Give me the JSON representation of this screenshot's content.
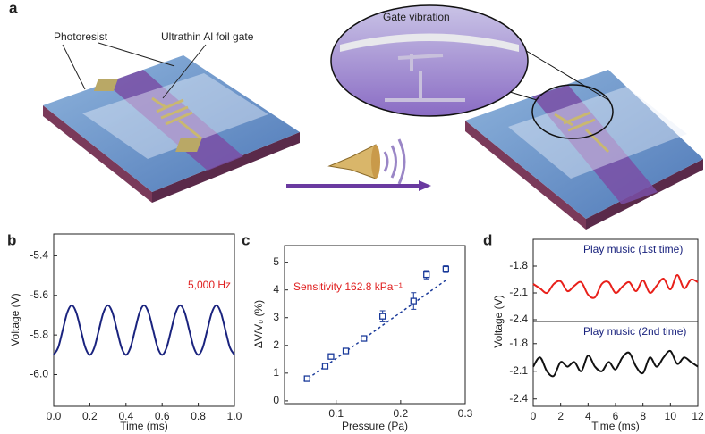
{
  "figure_a": {
    "panel": "a",
    "labels": [
      "Photoresist",
      "Ultrathin Al foil gate",
      "Gate vibration"
    ]
  },
  "chart_data": [
    {
      "type": "line",
      "panel": "b",
      "xlabel": "Time (ms)",
      "ylabel": "Voltage (V)",
      "annotation": "5,000 Hz",
      "annotation_color": "#e02020",
      "xlim": [
        0,
        1
      ],
      "ylim": [
        -6.16,
        -5.29
      ],
      "xticks": [
        {
          "value": 0,
          "label": "0.0"
        },
        0.2,
        0.4,
        0.6,
        0.8,
        {
          "value": 1,
          "label": "1.0"
        }
      ],
      "yticks": [
        -5.4,
        -5.6,
        -5.8,
        {
          "value": -6,
          "label": "-6.0"
        }
      ],
      "series": [
        {
          "color": "#1a237e",
          "x": [
            0,
            0.025,
            0.05,
            0.075,
            0.1,
            0.125,
            0.15,
            0.175,
            0.2,
            0.225,
            0.25,
            0.275,
            0.3,
            0.325,
            0.35,
            0.375,
            0.4,
            0.425,
            0.45,
            0.475,
            0.5,
            0.525,
            0.55,
            0.575,
            0.6,
            0.625,
            0.65,
            0.675,
            0.7,
            0.725,
            0.75,
            0.775,
            0.8,
            0.825,
            0.85,
            0.875,
            0.9,
            0.925,
            0.95,
            0.975,
            1
          ],
          "values": [
            -5.9,
            -5.863,
            -5.775,
            -5.687,
            -5.65,
            -5.687,
            -5.775,
            -5.863,
            -5.9,
            -5.863,
            -5.775,
            -5.687,
            -5.65,
            -5.687,
            -5.775,
            -5.863,
            -5.9,
            -5.863,
            -5.775,
            -5.687,
            -5.65,
            -5.687,
            -5.775,
            -5.863,
            -5.9,
            -5.863,
            -5.775,
            -5.687,
            -5.65,
            -5.687,
            -5.775,
            -5.863,
            -5.9,
            -5.863,
            -5.775,
            -5.687,
            -5.65,
            -5.687,
            -5.775,
            -5.863,
            -5.9
          ]
        }
      ]
    },
    {
      "type": "scatter",
      "panel": "c",
      "xlabel": "Pressure (Pa)",
      "ylabel": "ΔV/V₀ (%)",
      "annotation": "Sensitivity 162.8 kPa⁻¹",
      "annotation_color": "#e02020",
      "xlim": [
        0.02,
        0.3
      ],
      "ylim": [
        -0.1,
        5.6
      ],
      "xticks": [
        0.1,
        0.2,
        0.3
      ],
      "yticks": [
        0,
        1,
        2,
        3,
        4,
        5
      ],
      "series": [
        {
          "color": "#1a3a9a",
          "x": [
            0.055,
            0.083,
            0.092,
            0.115,
            0.143,
            0.172,
            0.22,
            0.24,
            0.27
          ],
          "values": [
            0.8,
            1.25,
            1.6,
            1.8,
            2.25,
            3.05,
            3.6,
            4.55,
            4.75
          ],
          "errors": [
            0.05,
            0.08,
            0.05,
            0.05,
            0.05,
            0.2,
            0.3,
            0.15,
            0.12
          ]
        }
      ],
      "fit": {
        "color": "#1a3a9a",
        "x": [
          0.05,
          0.27
        ],
        "values": [
          0.7,
          4.35
        ]
      }
    },
    {
      "type": "line",
      "panel": "d",
      "ylabel": "Voltage (V)",
      "annotation": "Play music (1st time)",
      "annotation_color": "#1a237e",
      "xlim": [
        0,
        12
      ],
      "ylim": [
        -2.42,
        -1.5
      ],
      "yticks": [
        -1.8,
        -2.1,
        -2.4
      ],
      "series": [
        {
          "color": "#e8201a",
          "x": [
            0,
            0.5,
            1,
            1.5,
            2,
            2.5,
            3,
            3.5,
            4,
            4.5,
            5,
            5.5,
            6,
            6.5,
            7,
            7.5,
            8,
            8.5,
            9,
            9.5,
            10,
            10.5,
            11,
            11.5,
            12
          ],
          "values": [
            -2.0,
            -2.05,
            -2.1,
            -2.0,
            -1.97,
            -2.08,
            -2.02,
            -1.98,
            -2.12,
            -2.15,
            -2.0,
            -1.98,
            -2.1,
            -2.03,
            -1.98,
            -2.08,
            -1.96,
            -2.1,
            -2.02,
            -1.94,
            -2.06,
            -1.9,
            -2.05,
            -1.95,
            -1.98
          ]
        }
      ]
    },
    {
      "type": "line",
      "xlabel": "Time (ms)",
      "annotation": "Play music (2nd time)",
      "annotation_color": "#1a237e",
      "xlim": [
        0,
        12
      ],
      "ylim": [
        -2.48,
        -1.56
      ],
      "xticks": [
        0,
        2,
        4,
        6,
        8,
        10,
        12
      ],
      "yticks": [
        -1.8,
        -2.1,
        -2.4
      ],
      "series": [
        {
          "color": "#111111",
          "x": [
            0,
            0.5,
            1,
            1.5,
            2,
            2.5,
            3,
            3.5,
            4,
            4.5,
            5,
            5.5,
            6,
            6.5,
            7,
            7.5,
            8,
            8.5,
            9,
            9.5,
            10,
            10.5,
            11,
            11.5,
            12
          ],
          "values": [
            -2.05,
            -1.95,
            -2.1,
            -2.15,
            -2.0,
            -2.05,
            -2.0,
            -2.1,
            -1.93,
            -2.05,
            -2.1,
            -2.0,
            -2.08,
            -1.95,
            -1.9,
            -2.05,
            -2.12,
            -1.95,
            -2.05,
            -1.95,
            -1.88,
            -2.02,
            -1.95,
            -2.0,
            -2.05
          ]
        }
      ]
    }
  ]
}
